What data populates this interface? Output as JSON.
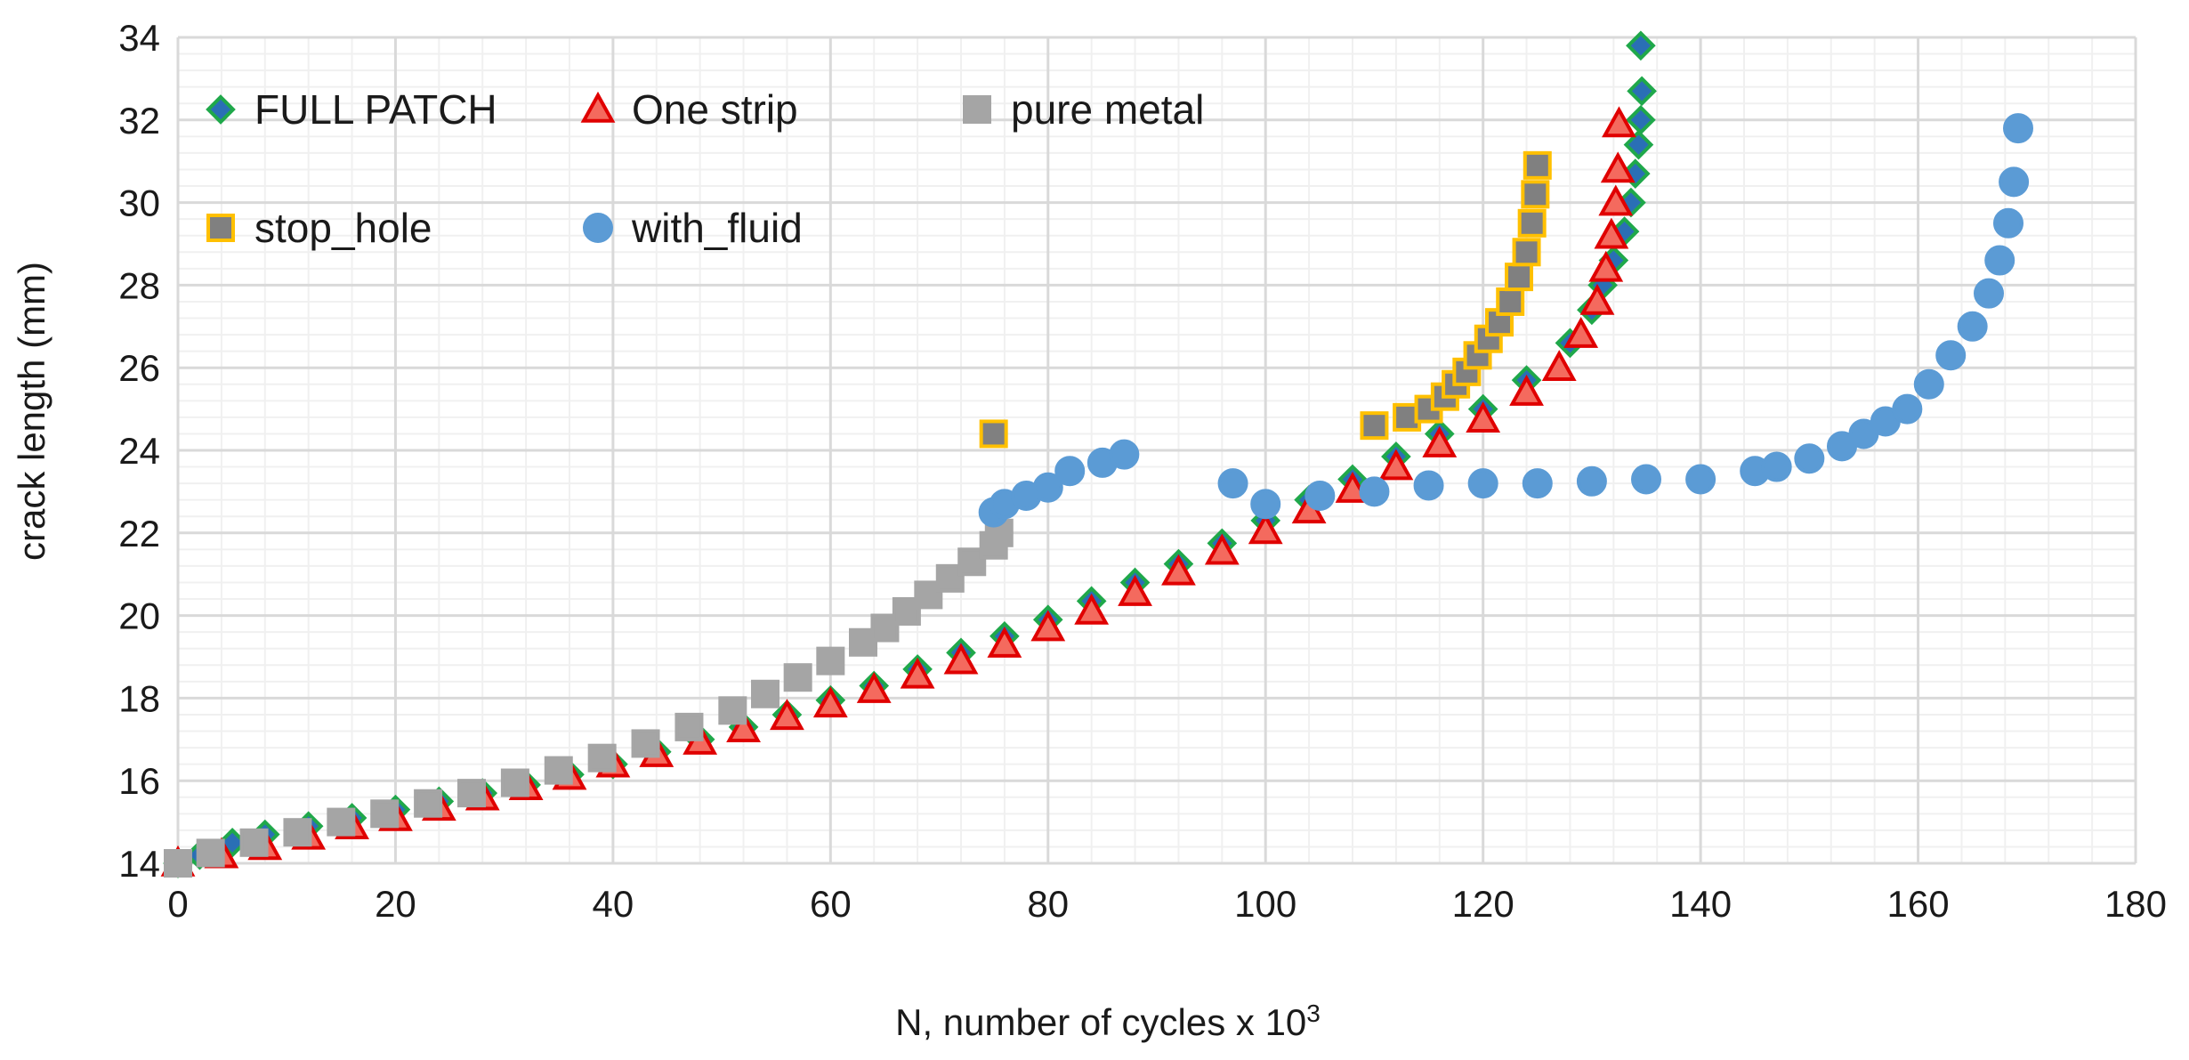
{
  "chart_data": {
    "type": "scatter",
    "title": "",
    "xlabel": "N, number of cycles x 10",
    "xlabel_superscript": "3",
    "ylabel": "crack length (mm)",
    "xlim": [
      0,
      180
    ],
    "ylim": [
      14,
      34
    ],
    "x_ticks": [
      "0",
      "20",
      "40",
      "60",
      "80",
      "100",
      "120",
      "140",
      "160",
      "180"
    ],
    "y_ticks": [
      "14",
      "16",
      "18",
      "20",
      "22",
      "24",
      "26",
      "28",
      "30",
      "32",
      "34"
    ],
    "grid": true,
    "legend_position": "top-left",
    "series": [
      {
        "name": "FULL PATCH",
        "marker": "diamond",
        "color": "#2a6fb5",
        "stroke": "#1fa84a",
        "points": [
          [
            0,
            14.0
          ],
          [
            2,
            14.2
          ],
          [
            5,
            14.5
          ],
          [
            8,
            14.7
          ],
          [
            12,
            14.9
          ],
          [
            16,
            15.1
          ],
          [
            20,
            15.3
          ],
          [
            24,
            15.5
          ],
          [
            28,
            15.7
          ],
          [
            32,
            15.9
          ],
          [
            36,
            16.15
          ],
          [
            40,
            16.4
          ],
          [
            44,
            16.7
          ],
          [
            48,
            17.0
          ],
          [
            52,
            17.3
          ],
          [
            56,
            17.6
          ],
          [
            60,
            17.95
          ],
          [
            64,
            18.3
          ],
          [
            68,
            18.7
          ],
          [
            72,
            19.1
          ],
          [
            76,
            19.5
          ],
          [
            80,
            19.9
          ],
          [
            84,
            20.35
          ],
          [
            88,
            20.8
          ],
          [
            92,
            21.25
          ],
          [
            96,
            21.75
          ],
          [
            100,
            22.3
          ],
          [
            104,
            22.8
          ],
          [
            108,
            23.3
          ],
          [
            112,
            23.85
          ],
          [
            116,
            24.4
          ],
          [
            120,
            25.0
          ],
          [
            124,
            25.7
          ],
          [
            128,
            26.6
          ],
          [
            130,
            27.4
          ],
          [
            131,
            28.0
          ],
          [
            132,
            28.6
          ],
          [
            133,
            29.3
          ],
          [
            133.6,
            30.0
          ],
          [
            134,
            30.7
          ],
          [
            134.3,
            31.4
          ],
          [
            134.5,
            32.0
          ],
          [
            134.6,
            32.7
          ],
          [
            134.5,
            33.8
          ]
        ]
      },
      {
        "name": "One strip",
        "marker": "triangle",
        "color": "#f46a5e",
        "stroke": "#e00000",
        "points": [
          [
            0,
            14.0
          ],
          [
            4,
            14.2
          ],
          [
            8,
            14.4
          ],
          [
            12,
            14.65
          ],
          [
            16,
            14.9
          ],
          [
            20,
            15.1
          ],
          [
            24,
            15.35
          ],
          [
            28,
            15.6
          ],
          [
            32,
            15.85
          ],
          [
            36,
            16.1
          ],
          [
            40,
            16.4
          ],
          [
            44,
            16.65
          ],
          [
            48,
            16.95
          ],
          [
            52,
            17.25
          ],
          [
            56,
            17.55
          ],
          [
            60,
            17.85
          ],
          [
            64,
            18.2
          ],
          [
            68,
            18.55
          ],
          [
            72,
            18.9
          ],
          [
            76,
            19.3
          ],
          [
            80,
            19.7
          ],
          [
            84,
            20.1
          ],
          [
            88,
            20.55
          ],
          [
            92,
            21.05
          ],
          [
            96,
            21.55
          ],
          [
            100,
            22.05
          ],
          [
            104,
            22.55
          ],
          [
            108,
            23.05
          ],
          [
            112,
            23.6
          ],
          [
            116,
            24.15
          ],
          [
            120,
            24.75
          ],
          [
            124,
            25.4
          ],
          [
            127,
            26.0
          ],
          [
            129,
            26.8
          ],
          [
            130.5,
            27.6
          ],
          [
            131.3,
            28.4
          ],
          [
            131.8,
            29.2
          ],
          [
            132.2,
            30.0
          ],
          [
            132.4,
            30.8
          ],
          [
            132.5,
            31.9
          ]
        ]
      },
      {
        "name": "pure metal",
        "marker": "square",
        "color": "#a5a5a5",
        "stroke": "#a5a5a5",
        "points": [
          [
            0,
            14.0
          ],
          [
            3,
            14.25
          ],
          [
            7,
            14.5
          ],
          [
            11,
            14.75
          ],
          [
            15,
            15.0
          ],
          [
            19,
            15.2
          ],
          [
            23,
            15.45
          ],
          [
            27,
            15.7
          ],
          [
            31,
            15.95
          ],
          [
            35,
            16.25
          ],
          [
            39,
            16.55
          ],
          [
            43,
            16.9
          ],
          [
            47,
            17.3
          ],
          [
            51,
            17.7
          ],
          [
            54,
            18.1
          ],
          [
            57,
            18.5
          ],
          [
            60,
            18.9
          ],
          [
            63,
            19.35
          ],
          [
            65,
            19.7
          ],
          [
            67,
            20.1
          ],
          [
            69,
            20.5
          ],
          [
            71,
            20.9
          ],
          [
            73,
            21.3
          ],
          [
            75,
            21.7
          ],
          [
            75.5,
            22.0
          ]
        ]
      },
      {
        "name": "stop_hole",
        "marker": "square",
        "color": "#808080",
        "stroke": "#ffc000",
        "points": [
          [
            75,
            24.4
          ],
          [
            110,
            24.6
          ],
          [
            113,
            24.8
          ],
          [
            115,
            25.0
          ],
          [
            116.5,
            25.3
          ],
          [
            117.5,
            25.6
          ],
          [
            118.5,
            25.9
          ],
          [
            119.5,
            26.3
          ],
          [
            120.5,
            26.7
          ],
          [
            121.5,
            27.1
          ],
          [
            122.5,
            27.6
          ],
          [
            123.3,
            28.2
          ],
          [
            124,
            28.8
          ],
          [
            124.5,
            29.5
          ],
          [
            124.8,
            30.2
          ],
          [
            125,
            30.9
          ]
        ]
      },
      {
        "name": "with_fluid",
        "marker": "circle",
        "color": "#5b9bd5",
        "stroke": "#5b9bd5",
        "points": [
          [
            75,
            22.5
          ],
          [
            76,
            22.7
          ],
          [
            78,
            22.9
          ],
          [
            80,
            23.1
          ],
          [
            82,
            23.5
          ],
          [
            85,
            23.7
          ],
          [
            87,
            23.9
          ],
          [
            97,
            23.2
          ],
          [
            100,
            22.7
          ],
          [
            105,
            22.9
          ],
          [
            110,
            23.0
          ],
          [
            115,
            23.15
          ],
          [
            120,
            23.2
          ],
          [
            125,
            23.2
          ],
          [
            130,
            23.25
          ],
          [
            135,
            23.3
          ],
          [
            140,
            23.3
          ],
          [
            145,
            23.5
          ],
          [
            147,
            23.6
          ],
          [
            150,
            23.8
          ],
          [
            153,
            24.1
          ],
          [
            155,
            24.4
          ],
          [
            157,
            24.7
          ],
          [
            159,
            25.0
          ],
          [
            161,
            25.6
          ],
          [
            163,
            26.3
          ],
          [
            165,
            27.0
          ],
          [
            166.5,
            27.8
          ],
          [
            167.5,
            28.6
          ],
          [
            168.3,
            29.5
          ],
          [
            168.8,
            30.5
          ],
          [
            169.2,
            31.8
          ]
        ]
      }
    ]
  }
}
